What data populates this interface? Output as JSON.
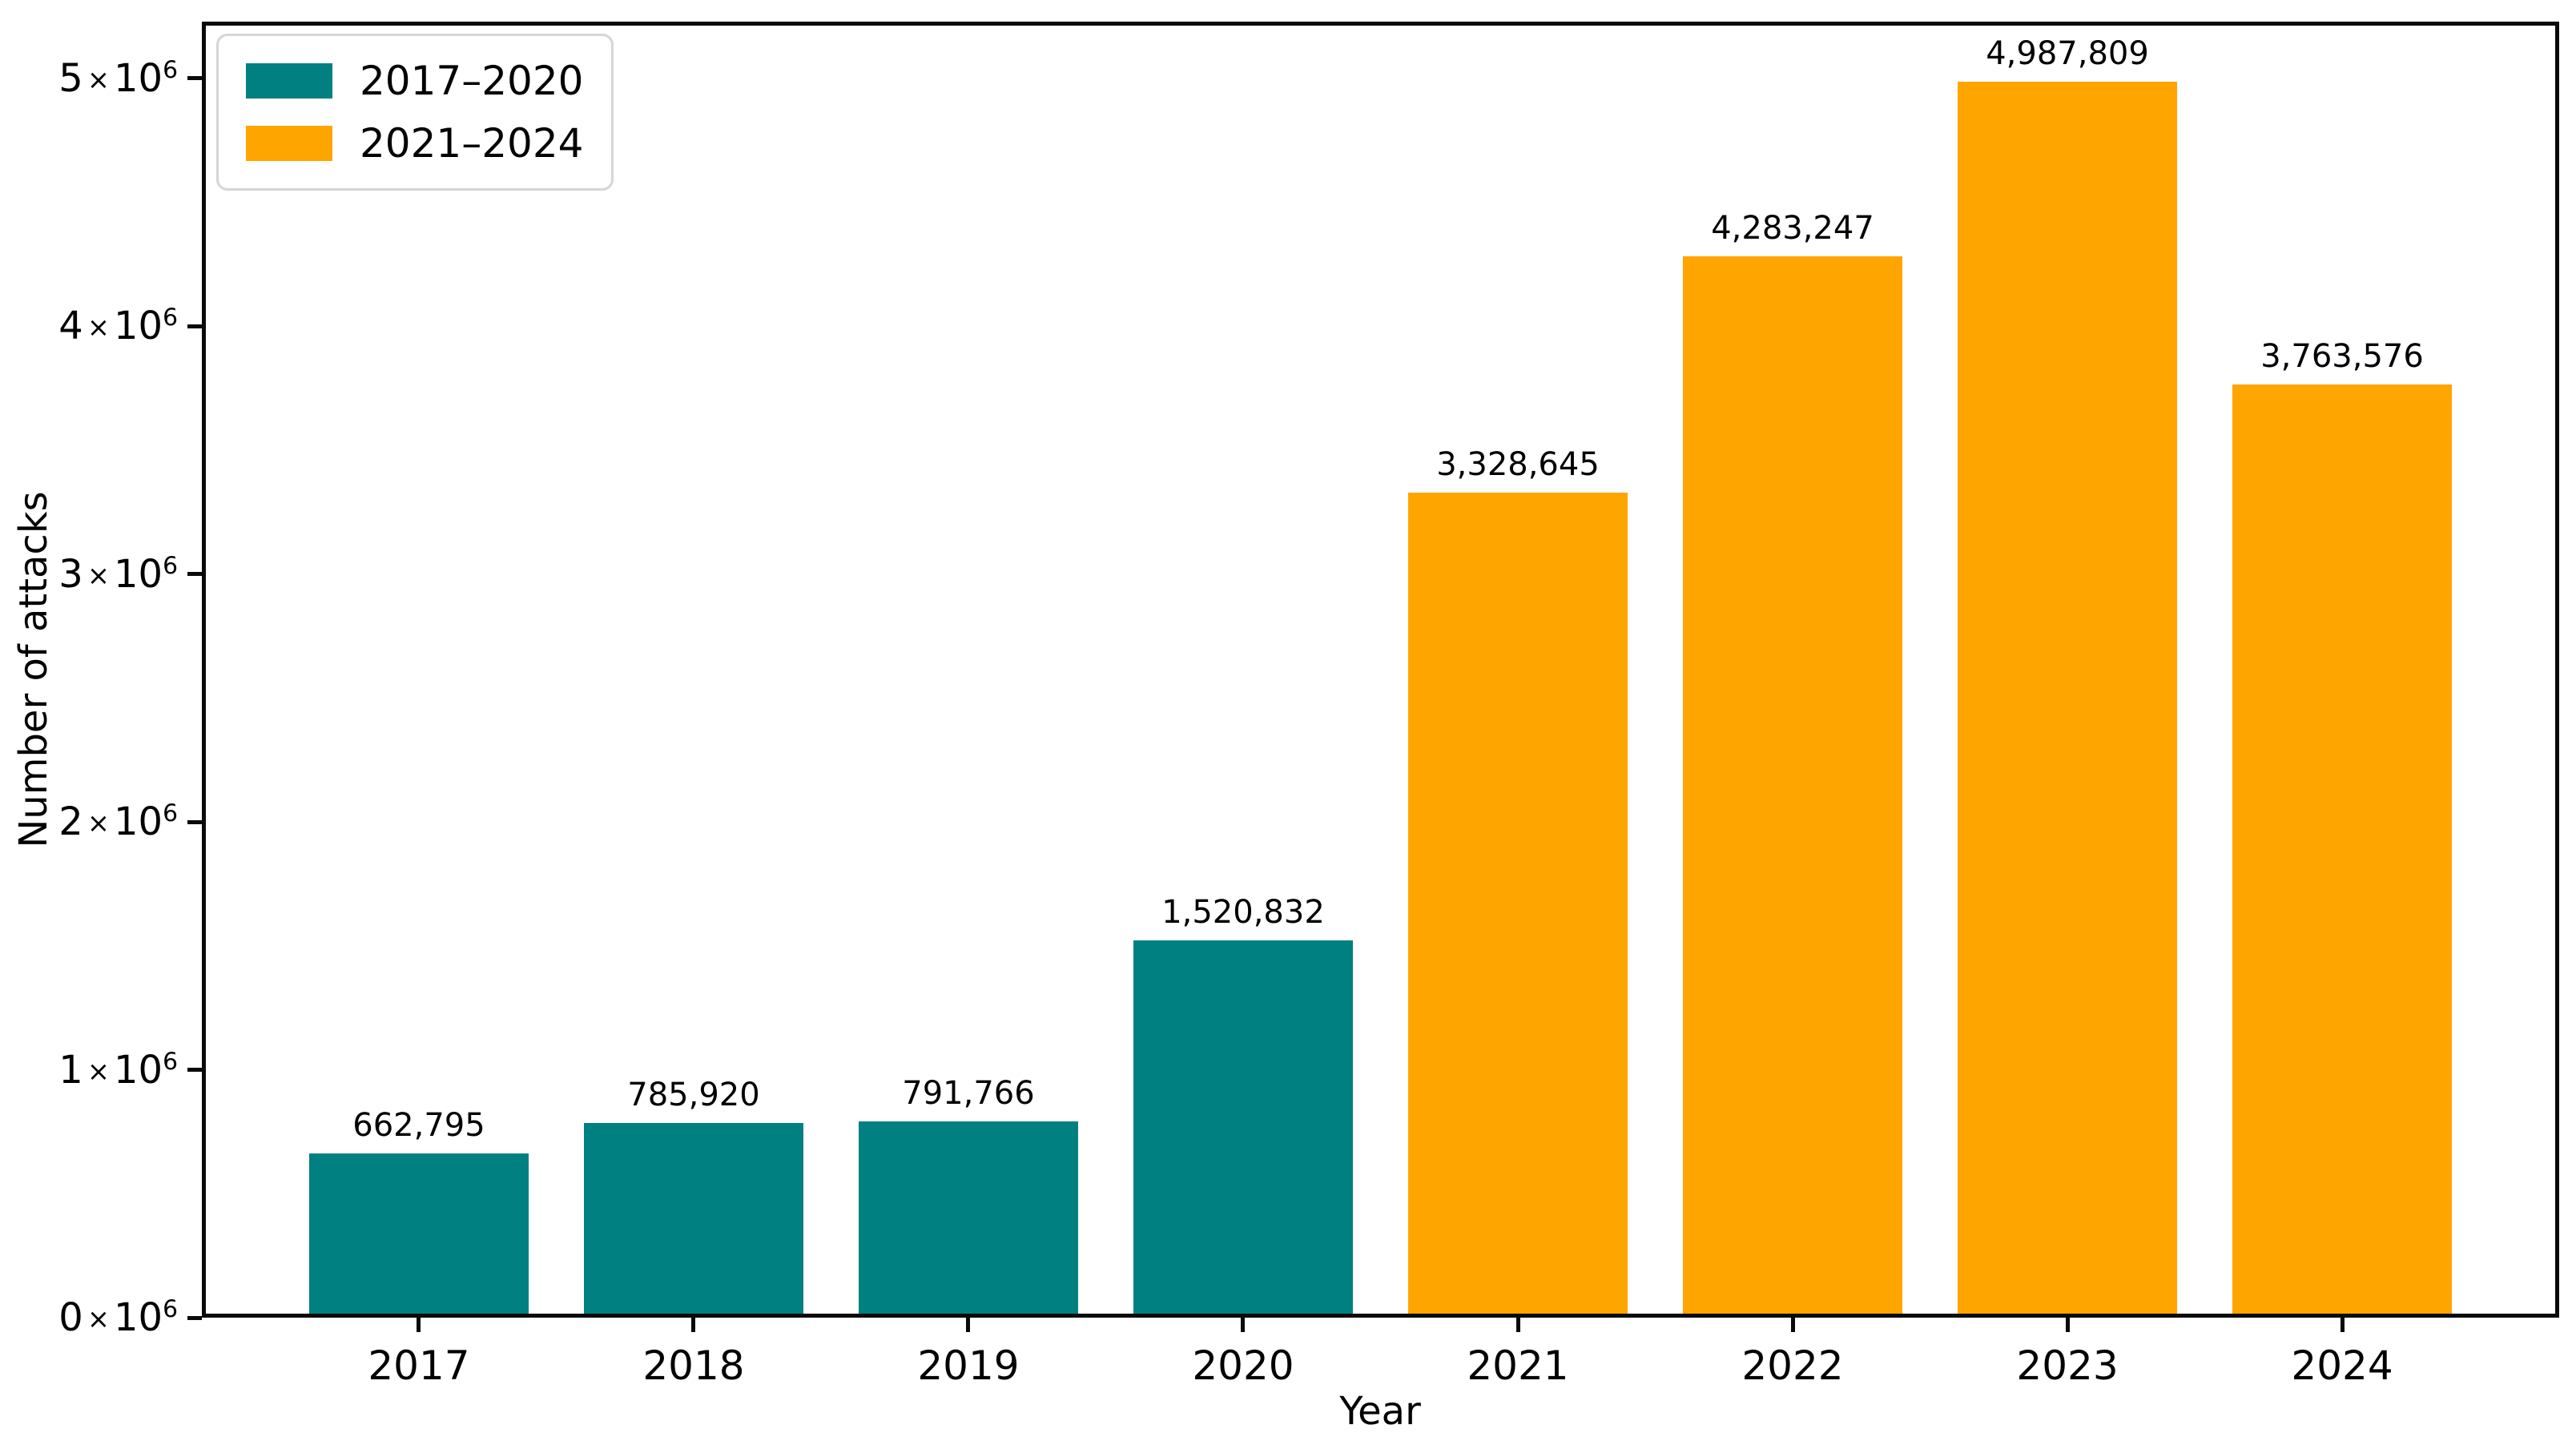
{
  "figure": {
    "background": "#ffffff"
  },
  "chart_data": {
    "type": "bar",
    "title": "",
    "xlabel": "Year",
    "ylabel": "Number of attacks",
    "categories": [
      "2017",
      "2018",
      "2019",
      "2020",
      "2021",
      "2022",
      "2023",
      "2024"
    ],
    "values": [
      662795,
      785920,
      791766,
      1520832,
      3328645,
      4283247,
      4987809,
      3763576
    ],
    "value_labels": [
      "662,795",
      "785,920",
      "791,766",
      "1,520,832",
      "3,328,645",
      "4,283,247",
      "4,987,809",
      "3,763,576"
    ],
    "bar_colors": [
      "#008080",
      "#008080",
      "#008080",
      "#008080",
      "#FFA500",
      "#FFA500",
      "#FFA500",
      "#FFA500"
    ],
    "series": [
      {
        "name": "2017–2020",
        "color": "#008080",
        "categories": [
          "2017",
          "2018",
          "2019",
          "2020"
        ],
        "values": [
          662795,
          785920,
          791766,
          1520832
        ]
      },
      {
        "name": "2021–2024",
        "color": "#FFA500",
        "categories": [
          "2021",
          "2022",
          "2023",
          "2024"
        ],
        "values": [
          3328645,
          4283247,
          4987809,
          3763576
        ]
      }
    ],
    "y_ticks": [
      {
        "value": 0,
        "mantissa": "0",
        "times": "×",
        "base": "10",
        "exp": "6"
      },
      {
        "value": 1000000,
        "mantissa": "1",
        "times": "×",
        "base": "10",
        "exp": "6"
      },
      {
        "value": 2000000,
        "mantissa": "2",
        "times": "×",
        "base": "10",
        "exp": "6"
      },
      {
        "value": 3000000,
        "mantissa": "3",
        "times": "×",
        "base": "10",
        "exp": "6"
      },
      {
        "value": 4000000,
        "mantissa": "4",
        "times": "×",
        "base": "10",
        "exp": "6"
      },
      {
        "value": 5000000,
        "mantissa": "5",
        "times": "×",
        "base": "10",
        "exp": "6"
      }
    ],
    "ylim": [
      0,
      5229000
    ],
    "x_margin": 0.79,
    "bar_width": 0.8,
    "grid": false,
    "legend_position": "upper-left"
  },
  "legend": {
    "items": [
      {
        "label": "2017–2020",
        "color": "#008080"
      },
      {
        "label": "2021–2024",
        "color": "#FFA500"
      }
    ]
  }
}
